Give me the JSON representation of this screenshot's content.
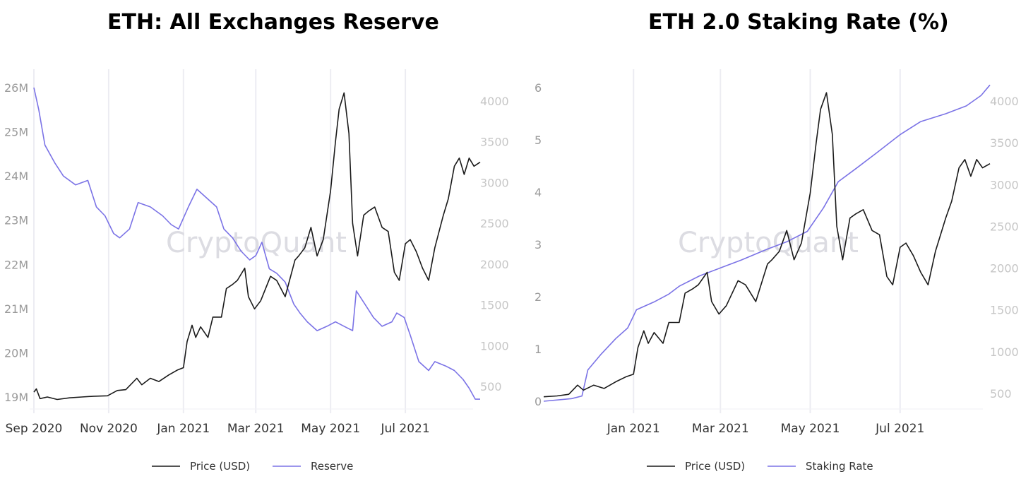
{
  "chart_data": [
    {
      "type": "line",
      "title": "ETH: All Exchanges Reserve",
      "watermark": "CryptoQuant",
      "x_ticks": [
        "Sep 2020",
        "Nov 2020",
        "Jan 2021",
        "Mar 2021",
        "May 2021",
        "Jul 2021"
      ],
      "y_left_ticks": [
        "19M",
        "20M",
        "21M",
        "22M",
        "23M",
        "24M",
        "25M",
        "26M"
      ],
      "y_right_ticks": [
        "500",
        "1000",
        "1500",
        "2000",
        "2500",
        "3000",
        "3500",
        "4000"
      ],
      "y_left_range": [
        19000000,
        26000000
      ],
      "y_right_range": [
        300,
        4150
      ],
      "x_range": [
        "2020-09-01",
        "2021-08-31"
      ],
      "grid": "vertical",
      "legend_position": "bottom",
      "series": [
        {
          "name": "Price (USD)",
          "axis": "right",
          "color": "#1a1a1a",
          "points": [
            [
              "2020-09-01",
              430
            ],
            [
              "2020-09-03",
              470
            ],
            [
              "2020-09-06",
              350
            ],
            [
              "2020-09-12",
              370
            ],
            [
              "2020-09-20",
              340
            ],
            [
              "2020-09-30",
              360
            ],
            [
              "2020-10-10",
              370
            ],
            [
              "2020-10-20",
              380
            ],
            [
              "2020-10-31",
              385
            ],
            [
              "2020-11-08",
              450
            ],
            [
              "2020-11-15",
              460
            ],
            [
              "2020-11-24",
              600
            ],
            [
              "2020-11-28",
              520
            ],
            [
              "2020-12-05",
              600
            ],
            [
              "2020-12-12",
              560
            ],
            [
              "2020-12-20",
              640
            ],
            [
              "2020-12-27",
              700
            ],
            [
              "2021-01-01",
              730
            ],
            [
              "2021-01-04",
              1050
            ],
            [
              "2021-01-08",
              1250
            ],
            [
              "2021-01-11",
              1100
            ],
            [
              "2021-01-15",
              1230
            ],
            [
              "2021-01-21",
              1100
            ],
            [
              "2021-01-25",
              1350
            ],
            [
              "2021-02-01",
              1350
            ],
            [
              "2021-02-05",
              1700
            ],
            [
              "2021-02-10",
              1750
            ],
            [
              "2021-02-14",
              1800
            ],
            [
              "2021-02-20",
              1950
            ],
            [
              "2021-02-23",
              1600
            ],
            [
              "2021-02-28",
              1450
            ],
            [
              "2021-03-05",
              1550
            ],
            [
              "2021-03-13",
              1850
            ],
            [
              "2021-03-18",
              1800
            ],
            [
              "2021-03-25",
              1600
            ],
            [
              "2021-04-02",
              2050
            ],
            [
              "2021-04-05",
              2100
            ],
            [
              "2021-04-10",
              2200
            ],
            [
              "2021-04-15",
              2450
            ],
            [
              "2021-04-20",
              2100
            ],
            [
              "2021-04-25",
              2300
            ],
            [
              "2021-05-01",
              2900
            ],
            [
              "2021-05-05",
              3500
            ],
            [
              "2021-05-08",
              3900
            ],
            [
              "2021-05-12",
              4100
            ],
            [
              "2021-05-16",
              3600
            ],
            [
              "2021-05-19",
              2500
            ],
            [
              "2021-05-23",
              2100
            ],
            [
              "2021-05-28",
              2600
            ],
            [
              "2021-06-01",
              2650
            ],
            [
              "2021-06-06",
              2700
            ],
            [
              "2021-06-12",
              2450
            ],
            [
              "2021-06-17",
              2400
            ],
            [
              "2021-06-22",
              1900
            ],
            [
              "2021-06-26",
              1800
            ],
            [
              "2021-07-01",
              2250
            ],
            [
              "2021-07-05",
              2300
            ],
            [
              "2021-07-10",
              2150
            ],
            [
              "2021-07-15",
              1950
            ],
            [
              "2021-07-20",
              1800
            ],
            [
              "2021-07-25",
              2200
            ],
            [
              "2021-08-01",
              2600
            ],
            [
              "2021-08-05",
              2800
            ],
            [
              "2021-08-10",
              3200
            ],
            [
              "2021-08-14",
              3300
            ],
            [
              "2021-08-18",
              3100
            ],
            [
              "2021-08-22",
              3300
            ],
            [
              "2021-08-26",
              3200
            ],
            [
              "2021-08-31",
              3250
            ]
          ]
        },
        {
          "name": "Reserve",
          "axis": "left",
          "color": "#7b73e6",
          "points": [
            [
              "2020-09-01",
              26000000
            ],
            [
              "2020-09-05",
              25500000
            ],
            [
              "2020-09-10",
              24700000
            ],
            [
              "2020-09-18",
              24300000
            ],
            [
              "2020-09-25",
              24000000
            ],
            [
              "2020-10-05",
              23800000
            ],
            [
              "2020-10-15",
              23900000
            ],
            [
              "2020-10-22",
              23300000
            ],
            [
              "2020-10-29",
              23100000
            ],
            [
              "2020-11-05",
              22700000
            ],
            [
              "2020-11-10",
              22600000
            ],
            [
              "2020-11-18",
              22800000
            ],
            [
              "2020-11-25",
              23400000
            ],
            [
              "2020-12-05",
              23300000
            ],
            [
              "2020-12-15",
              23100000
            ],
            [
              "2020-12-22",
              22900000
            ],
            [
              "2020-12-28",
              22800000
            ],
            [
              "2021-01-05",
              23300000
            ],
            [
              "2021-01-12",
              23700000
            ],
            [
              "2021-01-20",
              23500000
            ],
            [
              "2021-01-28",
              23300000
            ],
            [
              "2021-02-03",
              22800000
            ],
            [
              "2021-02-10",
              22600000
            ],
            [
              "2021-02-17",
              22300000
            ],
            [
              "2021-02-24",
              22100000
            ],
            [
              "2021-03-01",
              22200000
            ],
            [
              "2021-03-06",
              22500000
            ],
            [
              "2021-03-12",
              21900000
            ],
            [
              "2021-03-18",
              21800000
            ],
            [
              "2021-03-25",
              21600000
            ],
            [
              "2021-04-01",
              21100000
            ],
            [
              "2021-04-06",
              20900000
            ],
            [
              "2021-04-12",
              20700000
            ],
            [
              "2021-04-20",
              20500000
            ],
            [
              "2021-04-28",
              20600000
            ],
            [
              "2021-05-05",
              20700000
            ],
            [
              "2021-05-12",
              20600000
            ],
            [
              "2021-05-19",
              20500000
            ],
            [
              "2021-05-22",
              21400000
            ],
            [
              "2021-05-29",
              21100000
            ],
            [
              "2021-06-05",
              20800000
            ],
            [
              "2021-06-12",
              20600000
            ],
            [
              "2021-06-20",
              20700000
            ],
            [
              "2021-06-24",
              20900000
            ],
            [
              "2021-06-30",
              20800000
            ],
            [
              "2021-07-05",
              20400000
            ],
            [
              "2021-07-12",
              19800000
            ],
            [
              "2021-07-20",
              19600000
            ],
            [
              "2021-07-25",
              19800000
            ],
            [
              "2021-08-03",
              19700000
            ],
            [
              "2021-08-10",
              19600000
            ],
            [
              "2021-08-17",
              19400000
            ],
            [
              "2021-08-22",
              19200000
            ],
            [
              "2021-08-27",
              18950000
            ],
            [
              "2021-08-31",
              18950000
            ]
          ]
        }
      ]
    },
    {
      "type": "line",
      "title": "ETH 2.0 Staking Rate (%)",
      "watermark": "CryptoQuant",
      "x_ticks": [
        "Jan 2021",
        "Mar 2021",
        "May 2021",
        "Jul 2021"
      ],
      "y_left_ticks": [
        "0",
        "1",
        "2",
        "3",
        "4",
        "5",
        "6"
      ],
      "y_right_ticks": [
        "500",
        "1000",
        "1500",
        "2000",
        "2500",
        "3000",
        "3500",
        "4000"
      ],
      "y_left_range": [
        0,
        6
      ],
      "y_right_range": [
        450,
        4150
      ],
      "x_range": [
        "2020-11-01",
        "2021-08-31"
      ],
      "grid": "vertical",
      "legend_position": "bottom",
      "series": [
        {
          "name": "Price (USD)",
          "axis": "right",
          "color": "#1a1a1a",
          "points": [
            [
              "2020-11-01",
              460
            ],
            [
              "2020-11-10",
              470
            ],
            [
              "2020-11-18",
              490
            ],
            [
              "2020-11-24",
              600
            ],
            [
              "2020-11-28",
              540
            ],
            [
              "2020-12-05",
              600
            ],
            [
              "2020-12-12",
              560
            ],
            [
              "2020-12-20",
              640
            ],
            [
              "2020-12-27",
              700
            ],
            [
              "2021-01-01",
              730
            ],
            [
              "2021-01-04",
              1050
            ],
            [
              "2021-01-08",
              1250
            ],
            [
              "2021-01-11",
              1100
            ],
            [
              "2021-01-15",
              1230
            ],
            [
              "2021-01-21",
              1100
            ],
            [
              "2021-01-25",
              1350
            ],
            [
              "2021-02-01",
              1350
            ],
            [
              "2021-02-05",
              1700
            ],
            [
              "2021-02-10",
              1750
            ],
            [
              "2021-02-14",
              1800
            ],
            [
              "2021-02-20",
              1950
            ],
            [
              "2021-02-23",
              1600
            ],
            [
              "2021-02-28",
              1450
            ],
            [
              "2021-03-05",
              1550
            ],
            [
              "2021-03-13",
              1850
            ],
            [
              "2021-03-18",
              1800
            ],
            [
              "2021-03-25",
              1600
            ],
            [
              "2021-04-02",
              2050
            ],
            [
              "2021-04-05",
              2100
            ],
            [
              "2021-04-10",
              2200
            ],
            [
              "2021-04-15",
              2450
            ],
            [
              "2021-04-20",
              2100
            ],
            [
              "2021-04-25",
              2300
            ],
            [
              "2021-05-01",
              2900
            ],
            [
              "2021-05-05",
              3500
            ],
            [
              "2021-05-08",
              3900
            ],
            [
              "2021-05-12",
              4100
            ],
            [
              "2021-05-16",
              3600
            ],
            [
              "2021-05-19",
              2500
            ],
            [
              "2021-05-23",
              2100
            ],
            [
              "2021-05-28",
              2600
            ],
            [
              "2021-06-01",
              2650
            ],
            [
              "2021-06-06",
              2700
            ],
            [
              "2021-06-12",
              2450
            ],
            [
              "2021-06-17",
              2400
            ],
            [
              "2021-06-22",
              1900
            ],
            [
              "2021-06-26",
              1800
            ],
            [
              "2021-07-01",
              2250
            ],
            [
              "2021-07-05",
              2300
            ],
            [
              "2021-07-10",
              2150
            ],
            [
              "2021-07-15",
              1950
            ],
            [
              "2021-07-20",
              1800
            ],
            [
              "2021-07-25",
              2200
            ],
            [
              "2021-08-01",
              2600
            ],
            [
              "2021-08-05",
              2800
            ],
            [
              "2021-08-10",
              3200
            ],
            [
              "2021-08-14",
              3300
            ],
            [
              "2021-08-18",
              3100
            ],
            [
              "2021-08-22",
              3300
            ],
            [
              "2021-08-26",
              3200
            ],
            [
              "2021-08-31",
              3250
            ]
          ]
        },
        {
          "name": "Staking Rate",
          "axis": "left",
          "color": "#7b73e6",
          "points": [
            [
              "2020-11-01",
              0.0
            ],
            [
              "2020-11-20",
              0.05
            ],
            [
              "2020-11-27",
              0.1
            ],
            [
              "2020-12-01",
              0.6
            ],
            [
              "2020-12-10",
              0.9
            ],
            [
              "2020-12-20",
              1.2
            ],
            [
              "2020-12-28",
              1.4
            ],
            [
              "2021-01-03",
              1.75
            ],
            [
              "2021-01-15",
              1.9
            ],
            [
              "2021-01-25",
              2.05
            ],
            [
              "2021-02-01",
              2.2
            ],
            [
              "2021-02-15",
              2.4
            ],
            [
              "2021-03-01",
              2.55
            ],
            [
              "2021-03-15",
              2.7
            ],
            [
              "2021-04-01",
              2.9
            ],
            [
              "2021-04-15",
              3.05
            ],
            [
              "2021-04-29",
              3.25
            ],
            [
              "2021-05-10",
              3.7
            ],
            [
              "2021-05-20",
              4.2
            ],
            [
              "2021-06-01",
              4.45
            ],
            [
              "2021-06-15",
              4.75
            ],
            [
              "2021-07-01",
              5.1
            ],
            [
              "2021-07-15",
              5.35
            ],
            [
              "2021-08-01",
              5.5
            ],
            [
              "2021-08-15",
              5.65
            ],
            [
              "2021-08-25",
              5.85
            ],
            [
              "2021-08-31",
              6.05
            ]
          ]
        }
      ]
    }
  ]
}
